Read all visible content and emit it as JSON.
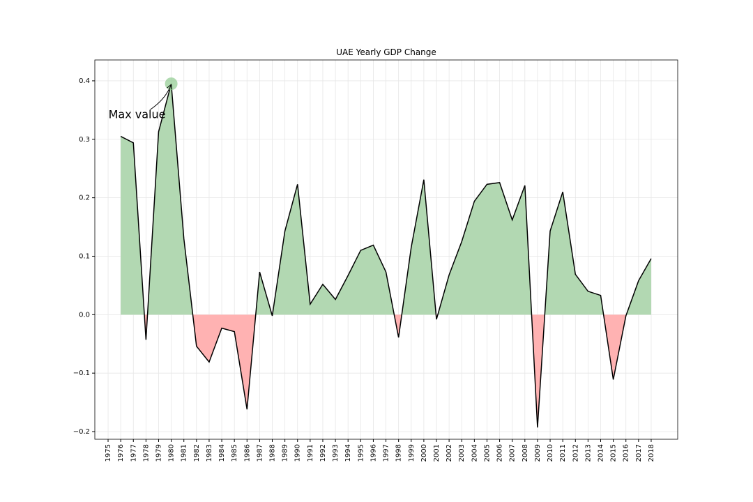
{
  "chart_data": {
    "type": "area",
    "title": "UAE Yearly GDP Change",
    "annotation": "Max value",
    "x": [
      1976,
      1977,
      1978,
      1979,
      1980,
      1981,
      1982,
      1983,
      1984,
      1985,
      1986,
      1987,
      1988,
      1989,
      1990,
      1991,
      1992,
      1993,
      1994,
      1995,
      1996,
      1997,
      1998,
      1999,
      2000,
      2001,
      2002,
      2003,
      2004,
      2005,
      2006,
      2007,
      2008,
      2009,
      2010,
      2011,
      2012,
      2013,
      2014,
      2015,
      2016,
      2017,
      2018
    ],
    "series": [
      {
        "color": "#000000",
        "values": [
          0.305,
          0.294,
          -0.043,
          0.313,
          0.395,
          0.13,
          -0.054,
          -0.081,
          -0.023,
          -0.029,
          -0.162,
          0.073,
          -0.002,
          0.143,
          0.223,
          0.018,
          0.052,
          0.026,
          0.067,
          0.11,
          0.119,
          0.073,
          -0.039,
          0.115,
          0.231,
          -0.008,
          0.068,
          0.125,
          0.194,
          0.223,
          0.226,
          0.162,
          0.221,
          -0.193,
          0.143,
          0.21,
          0.069,
          0.04,
          0.033,
          -0.111,
          -0.002,
          0.058,
          0.096
        ]
      }
    ],
    "positive_color": "#b2d8b2",
    "negative_color": "#ffb2b2",
    "marker_color": "#8fcb8f",
    "xlim": [
      1973.95,
      2020.1
    ],
    "ylim": [
      -0.2131,
      0.4357
    ],
    "xticks": [
      1975,
      1976,
      1977,
      1978,
      1979,
      1980,
      1981,
      1982,
      1983,
      1984,
      1985,
      1986,
      1987,
      1988,
      1989,
      1990,
      1991,
      1992,
      1993,
      1994,
      1995,
      1996,
      1997,
      1998,
      1999,
      2000,
      2001,
      2002,
      2003,
      2004,
      2005,
      2006,
      2007,
      2008,
      2009,
      2010,
      2011,
      2012,
      2013,
      2014,
      2015,
      2016,
      2017,
      2018
    ],
    "yticks": [
      {
        "value": -0.2,
        "label": "−0.2"
      },
      {
        "value": -0.1,
        "label": "−0.1"
      },
      {
        "value": 0,
        "label": "0.0"
      },
      0.1,
      0.2,
      0.3,
      0.4
    ],
    "grid": true
  }
}
